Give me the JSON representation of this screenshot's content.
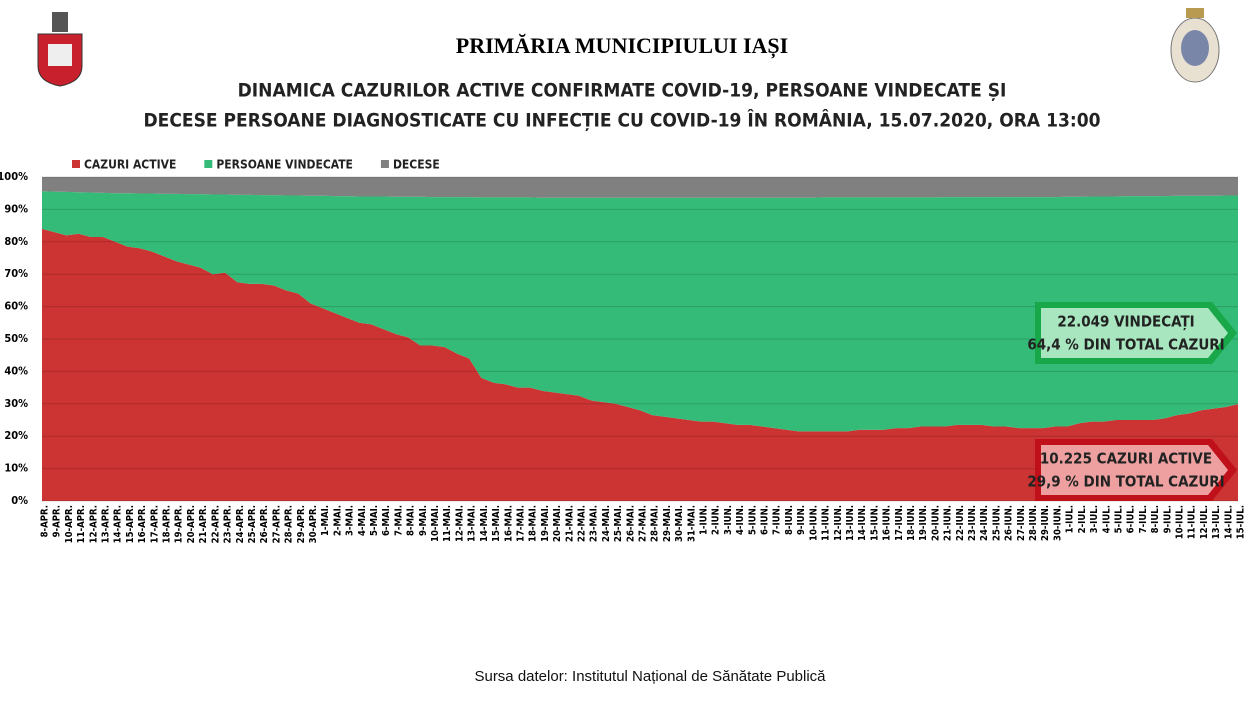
{
  "header": {
    "institution": "PRIMĂRIA MUNICIPIULUI IAȘI"
  },
  "chart_data": {
    "type": "stacked-area-percent",
    "title": "DINAMICA CAZURILOR ACTIVE CONFIRMATE COVID-19, PERSOANE VINDECATE ȘI",
    "subtitle": "DECESE PERSOANE DIAGNOSTICATE CU INFECȚIE CU COVID-19 ÎN ROMÂNIA, 15.07.2020, ORA 13:00",
    "categories": [
      "8-APR.",
      "9-APR.",
      "10-APR.",
      "11-APR.",
      "12-APR.",
      "13-APR.",
      "14-APR.",
      "15-APR.",
      "16-APR.",
      "17-APR.",
      "18-APR.",
      "19-APR.",
      "20-APR.",
      "21-APR.",
      "22-APR.",
      "23-APR.",
      "24-APR.",
      "25-APR.",
      "26-APR.",
      "27-APR.",
      "28-APR.",
      "29-APR.",
      "30-APR.",
      "1-MAI.",
      "2-MAI.",
      "3-MAI.",
      "4-MAI.",
      "5-MAI.",
      "6-MAI.",
      "7-MAI.",
      "8-MAI.",
      "9-MAI.",
      "10-MAI.",
      "11-MAI.",
      "12-MAI.",
      "13-MAI.",
      "14-MAI.",
      "15-MAI.",
      "16-MAI.",
      "17-MAI.",
      "18-MAI.",
      "19-MAI.",
      "20-MAI.",
      "21-MAI.",
      "22-MAI.",
      "23-MAI.",
      "24-MAI.",
      "25-MAI.",
      "26-MAI.",
      "27-MAI.",
      "28-MAI.",
      "29-MAI.",
      "30-MAI.",
      "31-MAI.",
      "1-IUN.",
      "2-IUN.",
      "3-IUN.",
      "4-IUN.",
      "5-IUN.",
      "6-IUN.",
      "7-IUN.",
      "8-IUN.",
      "9-IUN.",
      "10-IUN.",
      "11-IUN.",
      "12-IUN.",
      "13-IUN.",
      "14-IUN.",
      "15-IUN.",
      "16-IUN.",
      "17-IUN.",
      "18-IUN.",
      "19-IUN.",
      "20-IUN.",
      "21-IUN.",
      "22-IUN.",
      "23-IUN.",
      "24-IUN.",
      "25-IUN.",
      "26-IUN.",
      "27-IUN.",
      "28-IUN.",
      "29-IUN.",
      "30-IUN.",
      "1-IUL.",
      "2-IUL.",
      "3-IUL.",
      "4-IUL.",
      "5-IUL.",
      "6-IUL.",
      "7-IUL.",
      "8-IUL.",
      "9-IUL.",
      "10-IUL.",
      "11-IUL.",
      "12-IUL.",
      "13-IUL.",
      "14-IUL.",
      "15-IUL."
    ],
    "series": [
      {
        "name": "CAZURI ACTIVE",
        "color": "#cc3333",
        "values": [
          84,
          83,
          82,
          82.5,
          81.5,
          81.5,
          80,
          78.5,
          78,
          77,
          75.5,
          74,
          73,
          72,
          70,
          70.5,
          67.5,
          67,
          67,
          66.5,
          65,
          64,
          61,
          59.5,
          58,
          56.5,
          55,
          54.5,
          53,
          51.5,
          50.5,
          48,
          48,
          47.5,
          45.5,
          44,
          38,
          36.5,
          36,
          35,
          35,
          34,
          33.5,
          33,
          32.5,
          31,
          30.5,
          30,
          29,
          28,
          26.5,
          26,
          25.5,
          25,
          24.5,
          24.5,
          24,
          23.5,
          23.5,
          23,
          22.5,
          22,
          21.5,
          21.5,
          21.5,
          21.5,
          21.5,
          22,
          22,
          22,
          22.5,
          22.5,
          23,
          23,
          23,
          23.5,
          23.5,
          23.5,
          23,
          23,
          22.5,
          22.5,
          22.5,
          23,
          23,
          24,
          24.5,
          24.5,
          25,
          25,
          25,
          25,
          25.5,
          26.5,
          27,
          28,
          28.5,
          29,
          29.9
        ]
      },
      {
        "name": "PERSOANE VINDECATE",
        "color": "#33bb77",
        "values": [
          11.6,
          12.5,
          13.4,
          12.8,
          13.7,
          13.6,
          15,
          16.5,
          16.9,
          17.9,
          19.3,
          20.8,
          21.7,
          22.7,
          24.6,
          24.1,
          27,
          27.5,
          27.4,
          27.9,
          29.3,
          30.3,
          33.2,
          34.7,
          36.1,
          37.6,
          39,
          39.5,
          41,
          42.4,
          43.4,
          45.9,
          45.8,
          46.3,
          48.3,
          49.8,
          55.7,
          57.2,
          57.7,
          58.7,
          58.7,
          59.6,
          60.1,
          60.6,
          61.1,
          62.6,
          63.1,
          63.6,
          64.6,
          65.6,
          67.1,
          67.6,
          68.1,
          68.6,
          69.1,
          69.1,
          69.6,
          70.1,
          70.1,
          70.6,
          71.1,
          71.6,
          72.1,
          72.1,
          72.2,
          72.2,
          72.2,
          71.7,
          71.7,
          71.7,
          71.2,
          71.2,
          70.7,
          70.7,
          70.8,
          70.3,
          70.3,
          70.3,
          70.8,
          70.8,
          71.3,
          71.3,
          71.3,
          70.8,
          70.9,
          69.9,
          69.5,
          69.5,
          69,
          69.1,
          69.1,
          69.1,
          68.6,
          67.7,
          67.2,
          66.2,
          65.7,
          65.3,
          64.4
        ]
      },
      {
        "name": "DECESE",
        "color": "#808080",
        "values": [
          4.4,
          4.5,
          4.6,
          4.7,
          4.8,
          4.9,
          5.0,
          5.0,
          5.1,
          5.1,
          5.2,
          5.2,
          5.3,
          5.3,
          5.4,
          5.4,
          5.5,
          5.5,
          5.6,
          5.6,
          5.7,
          5.7,
          5.8,
          5.8,
          5.9,
          5.9,
          6.0,
          6.0,
          6.0,
          6.1,
          6.1,
          6.1,
          6.2,
          6.2,
          6.2,
          6.2,
          6.3,
          6.3,
          6.3,
          6.3,
          6.3,
          6.4,
          6.4,
          6.4,
          6.4,
          6.4,
          6.4,
          6.4,
          6.4,
          6.4,
          6.4,
          6.4,
          6.4,
          6.4,
          6.4,
          6.4,
          6.4,
          6.4,
          6.4,
          6.4,
          6.4,
          6.4,
          6.4,
          6.4,
          6.3,
          6.3,
          6.3,
          6.3,
          6.3,
          6.3,
          6.3,
          6.3,
          6.3,
          6.3,
          6.2,
          6.2,
          6.2,
          6.2,
          6.2,
          6.2,
          6.2,
          6.2,
          6.2,
          6.2,
          6.1,
          6.1,
          6.0,
          6.0,
          6.0,
          5.9,
          5.9,
          5.9,
          5.9,
          5.8,
          5.8,
          5.8,
          5.8,
          5.7,
          5.7
        ]
      }
    ],
    "ylim": [
      0,
      100
    ],
    "yticks": [
      {
        "value": 0,
        "label": "0%"
      },
      {
        "value": 10,
        "label": "10%"
      },
      {
        "value": 20,
        "label": "20%"
      },
      {
        "value": 30,
        "label": "30%"
      },
      {
        "value": 40,
        "label": "40%"
      },
      {
        "value": 50,
        "label": "50%"
      },
      {
        "value": 60,
        "label": "60%"
      },
      {
        "value": 70,
        "label": "70%"
      },
      {
        "value": 80,
        "label": "80%"
      },
      {
        "value": 90,
        "label": "90%"
      },
      {
        "value": 100,
        "label": "100%"
      }
    ],
    "grid": true,
    "legend": "top-left",
    "annotations": [
      {
        "line1": "22.049 VINDECAȚI",
        "line2": "64,4 % DIN TOTAL CAZURI"
      },
      {
        "line1": "10.225 CAZURI ACTIVE",
        "line2": "29,9 % DIN TOTAL CAZURI"
      }
    ]
  },
  "footer": {
    "source": "Sursa datelor: Institutul Național de Sănătate Publică"
  }
}
